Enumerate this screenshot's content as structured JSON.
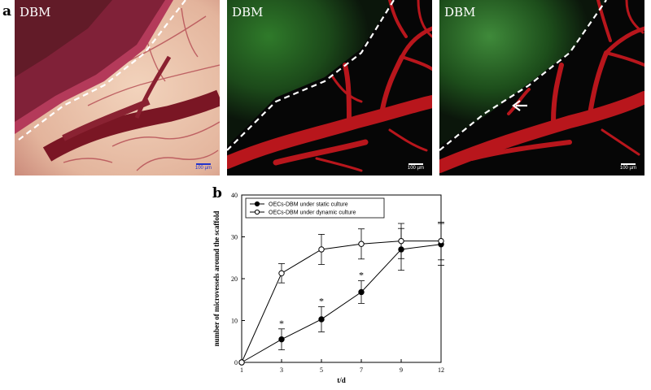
{
  "figure": {
    "panel_a_letter": "a",
    "panel_b_letter": "b",
    "micrographs": [
      {
        "label": "DBM",
        "scale_text": "100 µm",
        "has_arrow": false,
        "background": "brightfield"
      },
      {
        "label": "DBM",
        "scale_text": "100 µm",
        "has_arrow": false,
        "background": "fluorescence"
      },
      {
        "label": "DBM",
        "scale_text": "100 µm",
        "has_arrow": true,
        "background": "fluorescence"
      }
    ]
  },
  "chart_data": {
    "type": "line",
    "xlabel": "t/d",
    "ylabel": "number of microvessels around the scaffold",
    "x": [
      1,
      3,
      5,
      7,
      9,
      12
    ],
    "ylim": [
      0,
      40
    ],
    "yticks": [
      0,
      10,
      20,
      30,
      40
    ],
    "series": [
      {
        "name": "OECs-DBM under static culture",
        "marker": "filled-circle",
        "values": [
          0,
          5.5,
          10.3,
          16.8,
          27.0,
          28.2
        ],
        "errors": [
          0,
          2.5,
          3.0,
          2.7,
          5.0,
          5.0
        ],
        "significance": [
          "",
          "*",
          "*",
          "*",
          "",
          ""
        ]
      },
      {
        "name": "OECs-DBM under dynamic culture",
        "marker": "open-circle",
        "values": [
          0,
          21.3,
          27.0,
          28.3,
          29.0,
          29.0
        ],
        "errors": [
          0,
          2.3,
          3.6,
          3.6,
          4.2,
          4.5
        ],
        "significance": [
          "",
          "",
          "",
          "",
          "",
          ""
        ]
      }
    ],
    "legend_position": "top-left",
    "grid": false
  }
}
